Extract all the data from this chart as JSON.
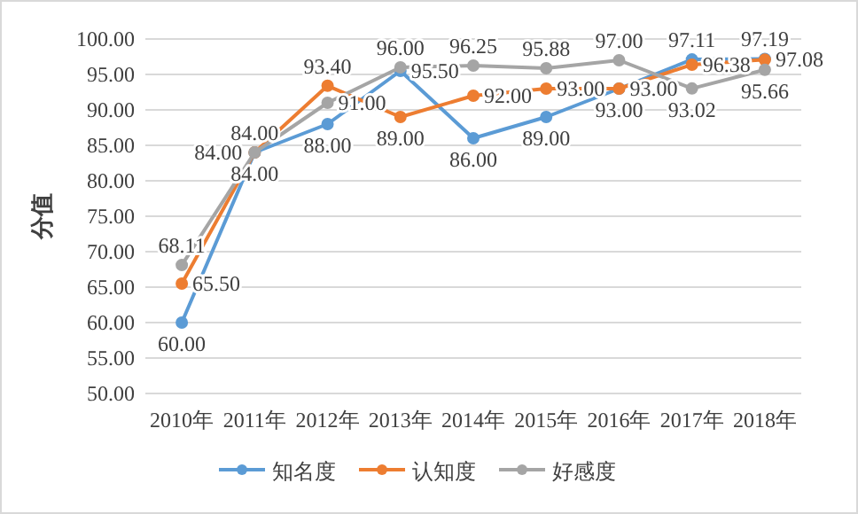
{
  "chart_data": {
    "type": "line",
    "ylabel": "分值",
    "categories": [
      "2010年",
      "2011年",
      "2012年",
      "2013年",
      "2014年",
      "2015年",
      "2016年",
      "2017年",
      "2018年"
    ],
    "series": [
      {
        "name": "知名度",
        "color": "#5b9bd5",
        "values": [
          60,
          84,
          88,
          95.5,
          86,
          89,
          93,
          97.11,
          97.19
        ],
        "value_labels": [
          "60.00",
          "84.00",
          "88.00",
          "95.50",
          "86.00",
          "89.00",
          "93.00",
          "97.11",
          "97.19"
        ]
      },
      {
        "name": "认知度",
        "color": "#ed7d31",
        "values": [
          65.5,
          84,
          93.4,
          89,
          92,
          93,
          93,
          96.38,
          97.08
        ],
        "value_labels": [
          "65.50",
          "84.00",
          "93.40",
          "89.00",
          "92.00",
          "93.00",
          "93.00",
          "96.38",
          "97.08"
        ]
      },
      {
        "name": "好感度",
        "color": "#a5a5a5",
        "values": [
          68.11,
          84,
          91,
          96,
          96.25,
          95.88,
          97,
          93.02,
          95.66
        ],
        "value_labels": [
          "68.11",
          "84.00",
          "91.00",
          "96.00",
          "96.25",
          "95.88",
          "97.00",
          "93.02",
          "95.66"
        ]
      }
    ],
    "ylim": [
      50,
      100
    ],
    "yticks": [
      {
        "value": 50,
        "label": "50.00"
      },
      {
        "value": 55,
        "label": "55.00"
      },
      {
        "value": 60,
        "label": "60.00"
      },
      {
        "value": 65,
        "label": "65.00"
      },
      {
        "value": 70,
        "label": "70.00"
      },
      {
        "value": 75,
        "label": "75.00"
      },
      {
        "value": 80,
        "label": "80.00"
      },
      {
        "value": 85,
        "label": "85.00"
      },
      {
        "value": 90,
        "label": "90.00"
      },
      {
        "value": 95,
        "label": "95.00"
      },
      {
        "value": 100,
        "label": "100.00"
      }
    ],
    "grid": "y",
    "legend": "bottom",
    "marker": "circle",
    "line_style": "solid"
  }
}
